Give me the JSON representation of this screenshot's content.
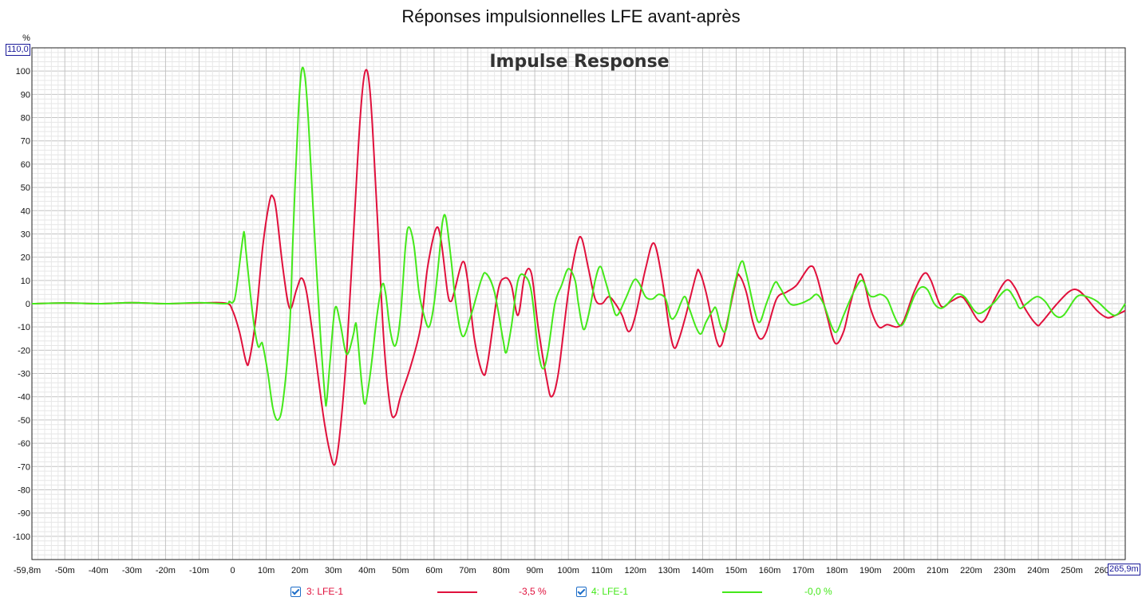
{
  "page_title": "Réponses impulsionnelles LFE avant-après",
  "chart_data": {
    "type": "line",
    "title": "Impulse Response",
    "ylabel": "%",
    "x_unit": "s",
    "xlim": [
      -0.0598,
      0.2659
    ],
    "ylim": [
      -110,
      110
    ],
    "xlim_labels": {
      "min": "-59,8m",
      "max": "265,9m"
    },
    "ylim_top_label": "110,0",
    "y_ticks": [
      100,
      90,
      80,
      70,
      60,
      50,
      40,
      30,
      20,
      10,
      0,
      -10,
      -20,
      -30,
      -40,
      -50,
      -60,
      -70,
      -80,
      -90,
      -100
    ],
    "x_ticks": [
      {
        "v": -0.05,
        "label": "-50m"
      },
      {
        "v": -0.04,
        "label": "-40m"
      },
      {
        "v": -0.03,
        "label": "-30m"
      },
      {
        "v": -0.02,
        "label": "-20m"
      },
      {
        "v": -0.01,
        "label": "-10m"
      },
      {
        "v": 0,
        "label": "0"
      },
      {
        "v": 0.01,
        "label": "10m"
      },
      {
        "v": 0.02,
        "label": "20m"
      },
      {
        "v": 0.03,
        "label": "30m"
      },
      {
        "v": 0.04,
        "label": "40m"
      },
      {
        "v": 0.05,
        "label": "50m"
      },
      {
        "v": 0.06,
        "label": "60m"
      },
      {
        "v": 0.07,
        "label": "70m"
      },
      {
        "v": 0.08,
        "label": "80m"
      },
      {
        "v": 0.09,
        "label": "90m"
      },
      {
        "v": 0.1,
        "label": "100m"
      },
      {
        "v": 0.11,
        "label": "110m"
      },
      {
        "v": 0.12,
        "label": "120m"
      },
      {
        "v": 0.13,
        "label": "130m"
      },
      {
        "v": 0.14,
        "label": "140m"
      },
      {
        "v": 0.15,
        "label": "150m"
      },
      {
        "v": 0.16,
        "label": "160m"
      },
      {
        "v": 0.17,
        "label": "170m"
      },
      {
        "v": 0.18,
        "label": "180m"
      },
      {
        "v": 0.19,
        "label": "190m"
      },
      {
        "v": 0.2,
        "label": "200m"
      },
      {
        "v": 0.21,
        "label": "210m"
      },
      {
        "v": 0.22,
        "label": "220m"
      },
      {
        "v": 0.23,
        "label": "230m"
      },
      {
        "v": 0.24,
        "label": "240m"
      },
      {
        "v": 0.25,
        "label": "250m"
      },
      {
        "v": 0.26,
        "label": "260m"
      }
    ],
    "grid": true,
    "legend_position": "bottom",
    "series": [
      {
        "name": "3: LFE-1",
        "value_label": "-3,5 %",
        "color": "#e0103c",
        "points": [
          [
            -0.0598,
            0
          ],
          [
            -0.05,
            0.3
          ],
          [
            -0.04,
            0
          ],
          [
            -0.03,
            0.4
          ],
          [
            -0.02,
            0
          ],
          [
            -0.01,
            0.3
          ],
          [
            -0.002,
            0.2
          ],
          [
            0,
            -3
          ],
          [
            0.002,
            -12
          ],
          [
            0.004,
            -25
          ],
          [
            0.005,
            -24
          ],
          [
            0.007,
            -5
          ],
          [
            0.009,
            25
          ],
          [
            0.011,
            44
          ],
          [
            0.012,
            46
          ],
          [
            0.013,
            40
          ],
          [
            0.015,
            15
          ],
          [
            0.017,
            -2
          ],
          [
            0.019,
            6
          ],
          [
            0.0205,
            11
          ],
          [
            0.022,
            5
          ],
          [
            0.024,
            -15
          ],
          [
            0.027,
            -48
          ],
          [
            0.029,
            -64
          ],
          [
            0.0305,
            -69
          ],
          [
            0.032,
            -55
          ],
          [
            0.034,
            -20
          ],
          [
            0.036,
            30
          ],
          [
            0.038,
            80
          ],
          [
            0.0395,
            100
          ],
          [
            0.041,
            90
          ],
          [
            0.043,
            40
          ],
          [
            0.045,
            -15
          ],
          [
            0.047,
            -45
          ],
          [
            0.0485,
            -48
          ],
          [
            0.05,
            -40
          ],
          [
            0.053,
            -27
          ],
          [
            0.056,
            -10
          ],
          [
            0.058,
            15
          ],
          [
            0.0605,
            32
          ],
          [
            0.062,
            28
          ],
          [
            0.064,
            5
          ],
          [
            0.065,
            1
          ],
          [
            0.066,
            5
          ],
          [
            0.0685,
            18
          ],
          [
            0.07,
            10
          ],
          [
            0.072,
            -15
          ],
          [
            0.0745,
            -30
          ],
          [
            0.076,
            -25
          ],
          [
            0.079,
            5
          ],
          [
            0.081,
            11
          ],
          [
            0.083,
            8
          ],
          [
            0.085,
            -5
          ],
          [
            0.087,
            12
          ],
          [
            0.089,
            13
          ],
          [
            0.091,
            -10
          ],
          [
            0.0935,
            -32
          ],
          [
            0.095,
            -40
          ],
          [
            0.097,
            -30
          ],
          [
            0.1,
            5
          ],
          [
            0.1025,
            25
          ],
          [
            0.104,
            28
          ],
          [
            0.106,
            15
          ],
          [
            0.108,
            2
          ],
          [
            0.11,
            0
          ],
          [
            0.112,
            3
          ],
          [
            0.114,
            0
          ],
          [
            0.116,
            -5
          ],
          [
            0.118,
            -12
          ],
          [
            0.12,
            -5
          ],
          [
            0.123,
            15
          ],
          [
            0.1255,
            26
          ],
          [
            0.128,
            10
          ],
          [
            0.13,
            -10
          ],
          [
            0.1315,
            -19
          ],
          [
            0.133,
            -15
          ],
          [
            0.135,
            -5
          ],
          [
            0.138,
            12
          ],
          [
            0.139,
            14
          ],
          [
            0.141,
            5
          ],
          [
            0.144,
            -15
          ],
          [
            0.1455,
            -18
          ],
          [
            0.147,
            -10
          ],
          [
            0.15,
            10
          ],
          [
            0.151,
            12
          ],
          [
            0.153,
            5
          ],
          [
            0.155,
            -8
          ],
          [
            0.157,
            -15
          ],
          [
            0.159,
            -12
          ],
          [
            0.162,
            2
          ],
          [
            0.165,
            5
          ],
          [
            0.168,
            8
          ],
          [
            0.172,
            16
          ],
          [
            0.174,
            12
          ],
          [
            0.177,
            -5
          ],
          [
            0.1795,
            -17
          ],
          [
            0.182,
            -12
          ],
          [
            0.184,
            0
          ],
          [
            0.1865,
            12
          ],
          [
            0.188,
            10
          ],
          [
            0.19,
            -2
          ],
          [
            0.1925,
            -10
          ],
          [
            0.195,
            -9
          ],
          [
            0.198,
            -10
          ],
          [
            0.2,
            -7
          ],
          [
            0.203,
            5
          ],
          [
            0.206,
            13
          ],
          [
            0.208,
            10
          ],
          [
            0.211,
            -1
          ],
          [
            0.214,
            1
          ],
          [
            0.217,
            3
          ],
          [
            0.219,
            0
          ],
          [
            0.222,
            -7
          ],
          [
            0.224,
            -7
          ],
          [
            0.227,
            2
          ],
          [
            0.2305,
            10
          ],
          [
            0.233,
            7
          ],
          [
            0.236,
            -2
          ],
          [
            0.2395,
            -9
          ],
          [
            0.241,
            -8
          ],
          [
            0.245,
            -1
          ],
          [
            0.249,
            5
          ],
          [
            0.2515,
            6
          ],
          [
            0.254,
            3
          ],
          [
            0.2575,
            -3
          ],
          [
            0.2605,
            -6
          ],
          [
            0.263,
            -5
          ],
          [
            0.2659,
            -3
          ]
        ]
      },
      {
        "name": "4: LFE-1",
        "value_label": "-0,0 %",
        "color": "#44e81a",
        "points": [
          [
            -0.0598,
            0
          ],
          [
            -0.05,
            0.3
          ],
          [
            -0.04,
            0
          ],
          [
            -0.03,
            0.4
          ],
          [
            -0.02,
            0
          ],
          [
            -0.01,
            0.4
          ],
          [
            -0.002,
            0
          ],
          [
            -0.001,
            1
          ],
          [
            0,
            0.5
          ],
          [
            0.001,
            5
          ],
          [
            0.003,
            28
          ],
          [
            0.0035,
            30
          ],
          [
            0.004,
            22
          ],
          [
            0.006,
            -5
          ],
          [
            0.0075,
            -18
          ],
          [
            0.0085,
            -17
          ],
          [
            0.009,
            -18
          ],
          [
            0.0105,
            -30
          ],
          [
            0.012,
            -45
          ],
          [
            0.0135,
            -50
          ],
          [
            0.015,
            -42
          ],
          [
            0.017,
            -10
          ],
          [
            0.018,
            30
          ],
          [
            0.0195,
            80
          ],
          [
            0.0205,
            100
          ],
          [
            0.0215,
            98
          ],
          [
            0.0225,
            80
          ],
          [
            0.024,
            40
          ],
          [
            0.026,
            -10
          ],
          [
            0.0275,
            -40
          ],
          [
            0.028,
            -42
          ],
          [
            0.029,
            -25
          ],
          [
            0.0305,
            -2
          ],
          [
            0.032,
            -8
          ],
          [
            0.0335,
            -20
          ],
          [
            0.0345,
            -21
          ],
          [
            0.036,
            -13
          ],
          [
            0.0365,
            -9
          ],
          [
            0.037,
            -11
          ],
          [
            0.0385,
            -35
          ],
          [
            0.0395,
            -43
          ],
          [
            0.041,
            -30
          ],
          [
            0.043,
            -5
          ],
          [
            0.0445,
            8
          ],
          [
            0.0455,
            5
          ],
          [
            0.047,
            -12
          ],
          [
            0.0485,
            -18
          ],
          [
            0.05,
            -5
          ],
          [
            0.0515,
            25
          ],
          [
            0.0525,
            33
          ],
          [
            0.054,
            25
          ],
          [
            0.0555,
            5
          ],
          [
            0.057,
            -5
          ],
          [
            0.0585,
            -10
          ],
          [
            0.06,
            0
          ],
          [
            0.0615,
            20
          ],
          [
            0.0625,
            35
          ],
          [
            0.0635,
            37
          ],
          [
            0.065,
            20
          ],
          [
            0.0665,
            0
          ],
          [
            0.0685,
            -14
          ],
          [
            0.071,
            -5
          ],
          [
            0.074,
            10
          ],
          [
            0.0755,
            13
          ],
          [
            0.078,
            5
          ],
          [
            0.0805,
            -15
          ],
          [
            0.0815,
            -21
          ],
          [
            0.083,
            -10
          ],
          [
            0.085,
            10
          ],
          [
            0.087,
            12
          ],
          [
            0.089,
            5
          ],
          [
            0.091,
            -20
          ],
          [
            0.0925,
            -28
          ],
          [
            0.094,
            -20
          ],
          [
            0.096,
            0
          ],
          [
            0.098,
            8
          ],
          [
            0.1,
            15
          ],
          [
            0.102,
            10
          ],
          [
            0.103,
            0
          ],
          [
            0.1045,
            -11
          ],
          [
            0.106,
            -5
          ],
          [
            0.108,
            10
          ],
          [
            0.1095,
            16
          ],
          [
            0.111,
            10
          ],
          [
            0.113,
            0
          ],
          [
            0.1145,
            -5
          ],
          [
            0.117,
            2
          ],
          [
            0.1195,
            10
          ],
          [
            0.121,
            9
          ],
          [
            0.123,
            3
          ],
          [
            0.125,
            2
          ],
          [
            0.127,
            4
          ],
          [
            0.129,
            2
          ],
          [
            0.1305,
            -6
          ],
          [
            0.132,
            -5
          ],
          [
            0.1345,
            3
          ],
          [
            0.136,
            -2
          ],
          [
            0.138,
            -10
          ],
          [
            0.1395,
            -13
          ],
          [
            0.141,
            -8
          ],
          [
            0.143,
            -3
          ],
          [
            0.144,
            -2
          ],
          [
            0.1455,
            -10
          ],
          [
            0.147,
            -11
          ],
          [
            0.149,
            5
          ],
          [
            0.1515,
            18
          ],
          [
            0.153,
            13
          ],
          [
            0.1555,
            -3
          ],
          [
            0.157,
            -8
          ],
          [
            0.159,
            0
          ],
          [
            0.1615,
            9
          ],
          [
            0.163,
            7
          ],
          [
            0.166,
            0
          ],
          [
            0.169,
            0
          ],
          [
            0.172,
            2
          ],
          [
            0.174,
            4
          ],
          [
            0.176,
            0
          ],
          [
            0.1785,
            -10
          ],
          [
            0.18,
            -12
          ],
          [
            0.182,
            -5
          ],
          [
            0.185,
            5
          ],
          [
            0.1875,
            10
          ],
          [
            0.1895,
            4
          ],
          [
            0.191,
            3
          ],
          [
            0.193,
            4
          ],
          [
            0.195,
            2
          ],
          [
            0.197,
            -5
          ],
          [
            0.1985,
            -9
          ],
          [
            0.2,
            -8
          ],
          [
            0.203,
            3
          ],
          [
            0.205,
            7
          ],
          [
            0.207,
            6
          ],
          [
            0.209,
            0
          ],
          [
            0.211,
            -2
          ],
          [
            0.213,
            0
          ],
          [
            0.2155,
            4
          ],
          [
            0.218,
            3
          ],
          [
            0.221,
            -3
          ],
          [
            0.223,
            -4
          ],
          [
            0.2265,
            0
          ],
          [
            0.2305,
            6
          ],
          [
            0.233,
            2
          ],
          [
            0.2345,
            -2
          ],
          [
            0.2365,
            0
          ],
          [
            0.2395,
            3
          ],
          [
            0.242,
            1
          ],
          [
            0.245,
            -5
          ],
          [
            0.2475,
            -5
          ],
          [
            0.2515,
            3
          ],
          [
            0.2545,
            3
          ],
          [
            0.2575,
            1
          ],
          [
            0.2605,
            -3
          ],
          [
            0.2625,
            -5
          ],
          [
            0.264,
            -4
          ],
          [
            0.2659,
            0
          ]
        ]
      }
    ]
  }
}
